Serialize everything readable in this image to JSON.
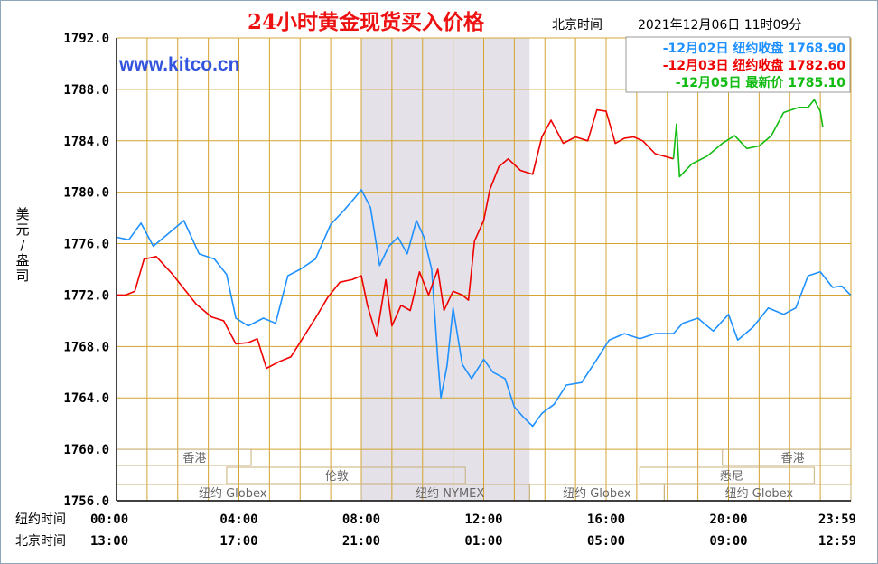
{
  "chart_data": {
    "type": "line",
    "title": "24小时黄金现货买入价格",
    "site": "www.kitco.cn",
    "time_label": "北京时间",
    "datetime": "2021年12月06日 11时09分",
    "ylabel": [
      "美",
      "元",
      "/",
      "盎",
      "司"
    ],
    "ylim": [
      1756,
      1792
    ],
    "y_ticks": [
      1792,
      1788,
      1784,
      1780,
      1776,
      1772,
      1768,
      1764,
      1760,
      1756
    ],
    "y_tick_labels": [
      "1792.0",
      "1788.0",
      "1784.0",
      "1780.0",
      "1776.0",
      "1772.0",
      "1768.0",
      "1764.0",
      "1760.0",
      "1756.0"
    ],
    "xlim": [
      0,
      24
    ],
    "x_ticks": [
      0,
      4,
      8,
      12,
      16,
      20,
      24
    ],
    "x_rows": [
      {
        "label": "纽约时间",
        "ticks": [
          "00:00",
          "04:00",
          "08:00",
          "12:00",
          "16:00",
          "20:00",
          "23:59"
        ]
      },
      {
        "label": "北京时间",
        "ticks": [
          "13:00",
          "17:00",
          "21:00",
          "01:00",
          "05:00",
          "09:00",
          "12:59"
        ]
      }
    ],
    "highlight_band": [
      8,
      13.5
    ],
    "legend_position": "top-right",
    "colors": {
      "blue": "#1e90ff",
      "red": "#ee0000",
      "green": "#11bb11",
      "grid": "#d4a530",
      "band": "#e4e1e8",
      "title": "#ee1111",
      "site": "#3355dd",
      "axis": "#000000"
    },
    "series": [
      {
        "name": "-12月02日 纽约收盘 1768.90",
        "color": "#1e90ff",
        "points": [
          [
            0,
            1776.5
          ],
          [
            0.4,
            1776.3
          ],
          [
            0.8,
            1777.6
          ],
          [
            1.2,
            1775.8
          ],
          [
            1.7,
            1776.8
          ],
          [
            2.2,
            1777.8
          ],
          [
            2.7,
            1775.2
          ],
          [
            3.2,
            1774.8
          ],
          [
            3.6,
            1773.6
          ],
          [
            3.9,
            1770.2
          ],
          [
            4.3,
            1769.6
          ],
          [
            4.8,
            1770.2
          ],
          [
            5.2,
            1769.8
          ],
          [
            5.6,
            1773.5
          ],
          [
            6.0,
            1774.0
          ],
          [
            6.5,
            1774.8
          ],
          [
            7.0,
            1777.5
          ],
          [
            7.4,
            1778.5
          ],
          [
            7.8,
            1779.6
          ],
          [
            8.0,
            1780.2
          ],
          [
            8.3,
            1778.8
          ],
          [
            8.6,
            1774.3
          ],
          [
            8.9,
            1775.8
          ],
          [
            9.2,
            1776.5
          ],
          [
            9.5,
            1775.2
          ],
          [
            9.8,
            1777.8
          ],
          [
            10.05,
            1776.5
          ],
          [
            10.3,
            1774.0
          ],
          [
            10.5,
            1767.0
          ],
          [
            10.6,
            1764.0
          ],
          [
            10.8,
            1766.5
          ],
          [
            11.0,
            1771.0
          ],
          [
            11.3,
            1766.6
          ],
          [
            11.6,
            1765.5
          ],
          [
            12.0,
            1767.0
          ],
          [
            12.3,
            1766.0
          ],
          [
            12.7,
            1765.5
          ],
          [
            13.0,
            1763.3
          ],
          [
            13.3,
            1762.5
          ],
          [
            13.6,
            1761.8
          ],
          [
            13.9,
            1762.8
          ],
          [
            14.3,
            1763.5
          ],
          [
            14.7,
            1765.0
          ],
          [
            15.2,
            1765.2
          ],
          [
            15.7,
            1767.0
          ],
          [
            16.1,
            1768.5
          ],
          [
            16.6,
            1769.0
          ],
          [
            17.1,
            1768.6
          ],
          [
            17.6,
            1769.0
          ],
          [
            18.2,
            1769.0
          ],
          [
            18.5,
            1769.8
          ],
          [
            19.0,
            1770.2
          ],
          [
            19.5,
            1769.2
          ],
          [
            20.0,
            1770.5
          ],
          [
            20.3,
            1768.5
          ],
          [
            20.8,
            1769.5
          ],
          [
            21.3,
            1771.0
          ],
          [
            21.8,
            1770.5
          ],
          [
            22.2,
            1771.0
          ],
          [
            22.6,
            1773.5
          ],
          [
            23.0,
            1773.8
          ],
          [
            23.4,
            1772.6
          ],
          [
            23.7,
            1772.7
          ],
          [
            23.99,
            1772.0
          ]
        ]
      },
      {
        "name": "-12月03日 纽约收盘 1782.60",
        "color": "#ee0000",
        "points": [
          [
            0,
            1772.0
          ],
          [
            0.3,
            1772.0
          ],
          [
            0.6,
            1772.3
          ],
          [
            0.9,
            1774.8
          ],
          [
            1.3,
            1775.0
          ],
          [
            1.8,
            1773.7
          ],
          [
            2.2,
            1772.5
          ],
          [
            2.6,
            1771.3
          ],
          [
            3.1,
            1770.3
          ],
          [
            3.5,
            1770.0
          ],
          [
            3.9,
            1768.2
          ],
          [
            4.3,
            1768.3
          ],
          [
            4.6,
            1768.6
          ],
          [
            4.9,
            1766.3
          ],
          [
            5.3,
            1766.8
          ],
          [
            5.7,
            1767.2
          ],
          [
            6.1,
            1768.7
          ],
          [
            6.5,
            1770.2
          ],
          [
            6.9,
            1771.8
          ],
          [
            7.3,
            1773.0
          ],
          [
            7.7,
            1773.2
          ],
          [
            8.0,
            1773.5
          ],
          [
            8.2,
            1771.2
          ],
          [
            8.5,
            1768.8
          ],
          [
            8.8,
            1773.2
          ],
          [
            9.0,
            1769.6
          ],
          [
            9.3,
            1771.2
          ],
          [
            9.6,
            1770.8
          ],
          [
            9.9,
            1773.8
          ],
          [
            10.2,
            1772.0
          ],
          [
            10.5,
            1774.0
          ],
          [
            10.7,
            1770.8
          ],
          [
            11.0,
            1772.3
          ],
          [
            11.3,
            1772.0
          ],
          [
            11.5,
            1771.6
          ],
          [
            11.7,
            1776.2
          ],
          [
            12.0,
            1777.8
          ],
          [
            12.2,
            1780.2
          ],
          [
            12.5,
            1782.0
          ],
          [
            12.8,
            1782.6
          ],
          [
            13.2,
            1781.7
          ],
          [
            13.6,
            1781.4
          ],
          [
            13.9,
            1784.3
          ],
          [
            14.2,
            1785.6
          ],
          [
            14.6,
            1783.8
          ],
          [
            15.0,
            1784.3
          ],
          [
            15.4,
            1784.0
          ],
          [
            15.7,
            1786.4
          ],
          [
            16.0,
            1786.3
          ],
          [
            16.3,
            1783.8
          ],
          [
            16.6,
            1784.2
          ],
          [
            16.9,
            1784.3
          ],
          [
            17.2,
            1784.0
          ],
          [
            17.6,
            1783.0
          ],
          [
            18.2,
            1782.6
          ]
        ]
      },
      {
        "name": "-12月05日 最新价 1785.10",
        "color": "#11bb11",
        "points": [
          [
            18.2,
            1782.6
          ],
          [
            18.3,
            1785.3
          ],
          [
            18.4,
            1781.2
          ],
          [
            18.8,
            1782.2
          ],
          [
            19.3,
            1782.8
          ],
          [
            19.8,
            1783.8
          ],
          [
            20.2,
            1784.4
          ],
          [
            20.6,
            1783.4
          ],
          [
            21.0,
            1783.6
          ],
          [
            21.4,
            1784.4
          ],
          [
            21.8,
            1786.2
          ],
          [
            22.3,
            1786.6
          ],
          [
            22.6,
            1786.6
          ],
          [
            22.8,
            1787.2
          ],
          [
            23.0,
            1786.3
          ],
          [
            23.08,
            1785.1
          ]
        ]
      }
    ],
    "markets": [
      {
        "name": "香港",
        "row": 0,
        "start": 0,
        "end": 4.4,
        "label_at": 2.55
      },
      {
        "name": "香港",
        "row": 0,
        "start": 19.8,
        "end": 24,
        "label_at": 22.1
      },
      {
        "name": "伦敦",
        "row": 1,
        "start": 3.6,
        "end": 11.4,
        "label_at": 7.2
      },
      {
        "name": "悉尼",
        "row": 1,
        "start": 17.1,
        "end": 22.8,
        "label_at": 20.1
      },
      {
        "name": "纽约 Globex",
        "row": 2,
        "start": 0,
        "end": 8.0,
        "label_at": 3.8
      },
      {
        "name": "纽约 NYMEX",
        "row": 2,
        "start": 8.0,
        "end": 13.5,
        "label_at": 10.9
      },
      {
        "name": "纽约 Globex",
        "row": 2,
        "start": 13.5,
        "end": 17.9,
        "label_at": 15.7
      },
      {
        "name": "纽约 Globex",
        "row": 2,
        "start": 17.9,
        "end": 24,
        "label_at": 21.0
      }
    ]
  }
}
